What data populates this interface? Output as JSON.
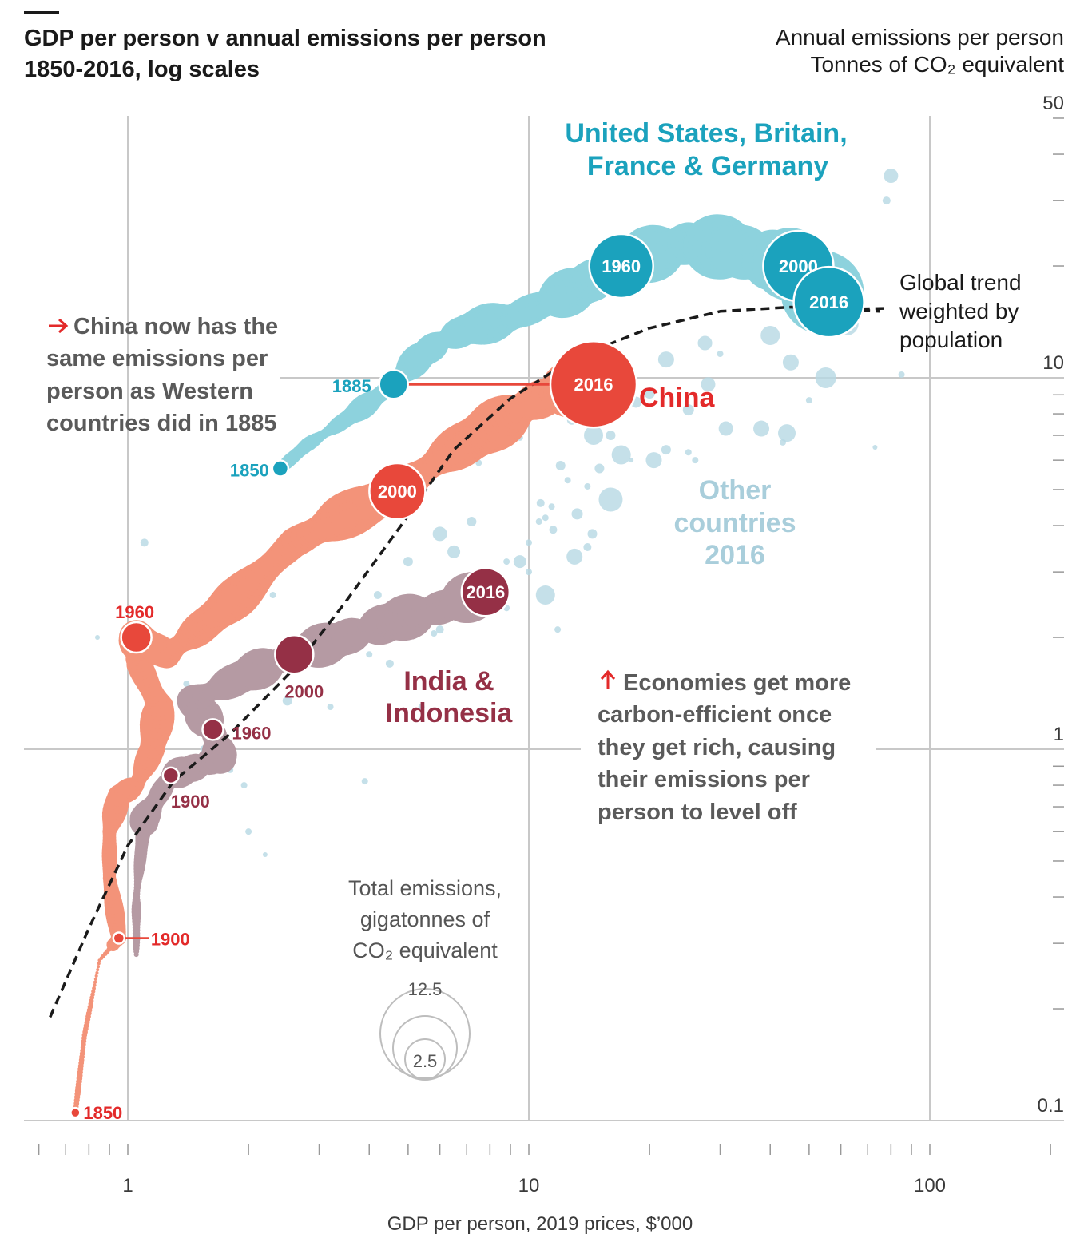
{
  "header": {
    "title_line1": "GDP per person v annual emissions per person",
    "title_line2": "1850-2016, log scales",
    "y_unit_line1": "Annual emissions per person",
    "y_unit_line2": "Tonnes of CO₂ equivalent"
  },
  "axes": {
    "xlabel": "GDP per person, 2019 prices, $’000",
    "x_ticks": [
      "1",
      "10",
      "100"
    ],
    "y_ticks": [
      "0.1",
      "1",
      "10",
      "50"
    ]
  },
  "groups": {
    "west": {
      "name_line1": "United States, Britain,",
      "name_line2": "France & Germany",
      "color": "#1ba2bd",
      "light": "#8dd2dd"
    },
    "china": {
      "name": "China",
      "color": "#e8483b",
      "light": "#f39379"
    },
    "india": {
      "name_line1": "India &",
      "name_line2": "Indonesia",
      "color": "#953046",
      "light": "#b59aa3"
    },
    "other": {
      "name_line1": "Other",
      "name_line2": "countries",
      "name_line3": "2016",
      "color": "#b7d8e3"
    }
  },
  "trend": {
    "line1": "Global trend",
    "line2": "weighted by",
    "line3": "population"
  },
  "annotations": {
    "china": [
      "China now has the",
      "same emissions per",
      "person as Western",
      "countries did in 1885"
    ],
    "efficiency": [
      "Economies get more",
      "carbon-efficient once",
      "they get rich, causing",
      "their emissions per",
      "person to level off"
    ]
  },
  "size_legend": {
    "title_line1": "Total emissions,",
    "title_line2": "gigatonnes of",
    "title_line3": "CO₂ equivalent",
    "large": "12.5",
    "small": "2.5"
  },
  "chart_data": {
    "type": "scatter",
    "title": "GDP per person v annual emissions per person",
    "subtitle": "1850-2016, log scales",
    "xlabel": "GDP per person, 2019 prices, $’000",
    "ylabel": "Annual emissions per person, Tonnes of CO₂ equivalent",
    "x_scale": "log",
    "y_scale": "log",
    "xlim": [
      0.6,
      200
    ],
    "ylim": [
      0.1,
      50
    ],
    "grid": true,
    "series": [
      {
        "name": "United States, Britain, France & Germany",
        "labelled_points": [
          {
            "label": "1850",
            "x": 2.4,
            "y": 5.7
          },
          {
            "label": "1885",
            "x": 4.6,
            "y": 9.6
          },
          {
            "label": "1960",
            "x": 17,
            "y": 20
          },
          {
            "label": "2000",
            "x": 47,
            "y": 20
          },
          {
            "label": "2016",
            "x": 56,
            "y": 16
          }
        ],
        "path": [
          [
            2.4,
            5.7
          ],
          [
            2.8,
            6.6
          ],
          [
            3.3,
            7.4
          ],
          [
            3.9,
            8.4
          ],
          [
            4.6,
            9.6
          ],
          [
            5.3,
            11.3
          ],
          [
            6.0,
            12.5
          ],
          [
            7.0,
            13.5
          ],
          [
            9.0,
            14.5
          ],
          [
            11.5,
            16.2
          ],
          [
            14,
            18
          ],
          [
            17,
            20
          ],
          [
            20,
            21.5
          ],
          [
            25,
            23
          ],
          [
            30,
            22.5
          ],
          [
            36,
            21.5
          ],
          [
            42,
            20.5
          ],
          [
            47,
            20
          ],
          [
            52,
            18
          ],
          [
            56,
            16
          ]
        ]
      },
      {
        "name": "China",
        "labelled_points": [
          {
            "label": "1850",
            "x": 0.74,
            "y": 0.105
          },
          {
            "label": "1900",
            "x": 0.95,
            "y": 0.31
          },
          {
            "label": "1960",
            "x": 1.05,
            "y": 2.0
          },
          {
            "label": "2000",
            "x": 4.7,
            "y": 4.95
          },
          {
            "label": "2016",
            "x": 14.5,
            "y": 9.6
          }
        ],
        "path": [
          [
            0.74,
            0.105
          ],
          [
            0.78,
            0.17
          ],
          [
            0.85,
            0.27
          ],
          [
            0.95,
            0.31
          ],
          [
            0.9,
            0.45
          ],
          [
            0.9,
            0.6
          ],
          [
            0.95,
            0.75
          ],
          [
            1.05,
            0.8
          ],
          [
            1.15,
            1.0
          ],
          [
            1.2,
            1.3
          ],
          [
            1.05,
            1.75
          ],
          [
            1.05,
            2.0
          ],
          [
            1.25,
            1.8
          ],
          [
            1.5,
            2.1
          ],
          [
            1.9,
            2.6
          ],
          [
            2.6,
            3.6
          ],
          [
            3.4,
            4.2
          ],
          [
            4.7,
            4.95
          ],
          [
            6.2,
            6.2
          ],
          [
            8,
            7.3
          ],
          [
            10,
            8.5
          ],
          [
            12,
            9.2
          ],
          [
            14.5,
            9.6
          ]
        ]
      },
      {
        "name": "India & Indonesia",
        "labelled_points": [
          {
            "label": "1900",
            "x": 1.28,
            "y": 0.85
          },
          {
            "label": "1960",
            "x": 1.63,
            "y": 1.13
          },
          {
            "label": "2000",
            "x": 2.6,
            "y": 1.8
          },
          {
            "label": "2016",
            "x": 7.8,
            "y": 2.65
          }
        ],
        "path": [
          [
            1.05,
            0.28
          ],
          [
            1.05,
            0.4
          ],
          [
            1.1,
            0.65
          ],
          [
            1.28,
            0.85
          ],
          [
            1.5,
            0.9
          ],
          [
            1.7,
            0.95
          ],
          [
            1.63,
            1.13
          ],
          [
            1.45,
            1.35
          ],
          [
            2.0,
            1.6
          ],
          [
            2.6,
            1.8
          ],
          [
            3.5,
            2.0
          ],
          [
            4.5,
            2.2
          ],
          [
            6,
            2.4
          ],
          [
            7.8,
            2.65
          ]
        ]
      },
      {
        "name": "Other countries 2016",
        "note": "individual countries, 2016"
      },
      {
        "name": "Global trend weighted by population",
        "style": "dashed",
        "path": [
          [
            0.64,
            0.19
          ],
          [
            0.8,
            0.33
          ],
          [
            1.0,
            0.55
          ],
          [
            1.3,
            0.82
          ],
          [
            1.8,
            1.1
          ],
          [
            2.6,
            1.65
          ],
          [
            3.5,
            2.5
          ],
          [
            4.8,
            4.0
          ],
          [
            6.5,
            6.4
          ],
          [
            9,
            8.8
          ],
          [
            13,
            11.3
          ],
          [
            20,
            13.6
          ],
          [
            30,
            15.1
          ],
          [
            45,
            15.5
          ],
          [
            60,
            15.3
          ],
          [
            75,
            15.1
          ]
        ]
      }
    ],
    "size_legend_values": [
      12.5,
      2.5
    ]
  }
}
